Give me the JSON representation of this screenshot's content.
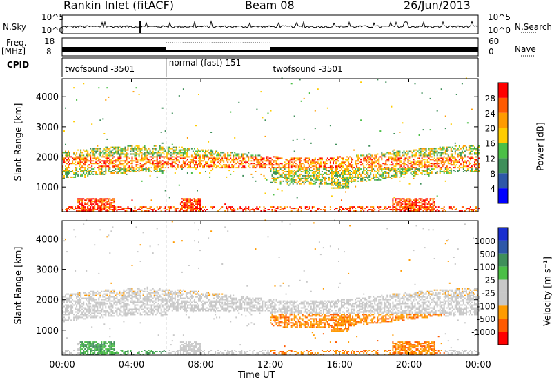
{
  "header": {
    "station": "Rankin Inlet (fitACF)",
    "beam": "Beam 08",
    "date": "26/Jun/2013"
  },
  "small_panels": {
    "nsky_label": "N.Sky",
    "nsearch_label": "N.Search",
    "freq_label_1": "Freq.",
    "freq_label_2": "[MHz]",
    "nave_label": "Nave",
    "cpid_label": "CPID",
    "nsky_ticks": [
      "10^5",
      "10^0"
    ],
    "nsearch_ticks": [
      "10^5",
      "10^0"
    ],
    "freq_ticks": [
      "18",
      "8"
    ],
    "nave_ticks": [
      "60",
      "0"
    ],
    "cpid_segments": [
      {
        "label": "twofsound -3501",
        "start": 0,
        "end": 6
      },
      {
        "label": "normal (fast) 151",
        "start": 6,
        "end": 12
      },
      {
        "label": "twofsound -3501",
        "start": 12,
        "end": 24
      }
    ]
  },
  "axes": {
    "x_ticks": [
      "00:00",
      "04:00",
      "08:00",
      "12:00",
      "16:00",
      "20:00",
      "00:00"
    ],
    "x_label": "Time UT",
    "y_ticks": [
      "1000",
      "2000",
      "3000",
      "4000"
    ],
    "y_label": "Slant Range [km]"
  },
  "colors": {
    "power": [
      "#0000ff",
      "#2e57a8",
      "#3f8f5a",
      "#4bbf46",
      "#ffcc00",
      "#ff9b00",
      "#ff5a00",
      "#ff0000"
    ],
    "velocity": [
      "#ff0000",
      "#ff5a00",
      "#ff9b00",
      "#c8c8c8",
      "#c8c8c8",
      "#4bbf46",
      "#3f8f5a",
      "#2e57a8",
      "#1a2fd0"
    ]
  },
  "chart_data": [
    {
      "type": "heatmap",
      "title": "",
      "quantity": "Power",
      "colorbar_label": "Power [dB]",
      "colorbar_ticks": [
        "28",
        "24",
        "20",
        "16",
        "12",
        "8",
        "4"
      ],
      "xlabel": "",
      "ylabel": "Slant Range [km]",
      "xlim": [
        0,
        24
      ],
      "ylim": [
        180,
        4600
      ],
      "x_unit": "hours UT"
    },
    {
      "type": "heatmap",
      "title": "",
      "quantity": "Velocity",
      "colorbar_label": "Velocity [m s⁻¹]",
      "colorbar_ticks": [
        "1000",
        "500",
        "100",
        "25",
        "-25",
        "-100",
        "-500",
        "-1000"
      ],
      "xlabel": "Time UT",
      "ylabel": "Slant Range [km]",
      "xlim": [
        0,
        24
      ],
      "ylim": [
        180,
        4600
      ],
      "x_unit": "hours UT"
    }
  ]
}
